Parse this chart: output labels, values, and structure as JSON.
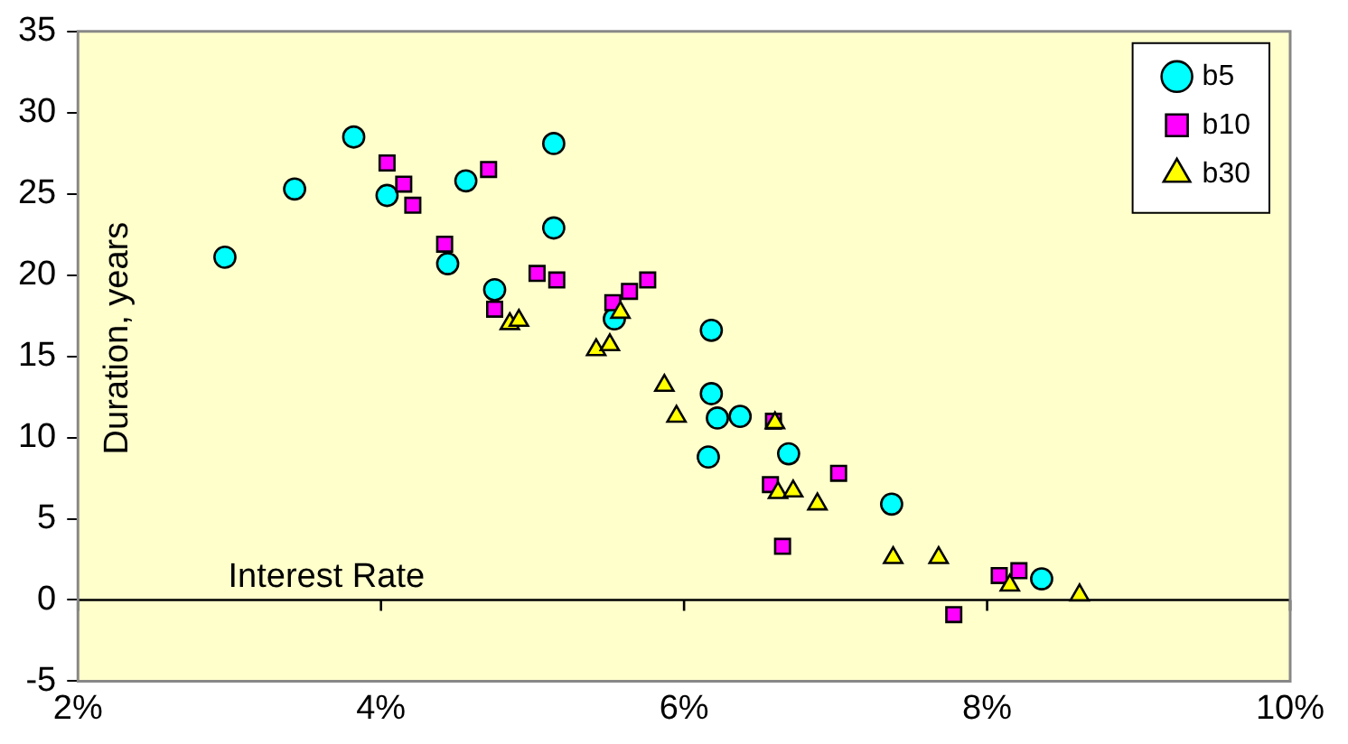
{
  "chart_data": {
    "type": "scatter",
    "xlabel": "Interest Rate",
    "ylabel": "Duration, years",
    "xlim": [
      2,
      10
    ],
    "xticks": [
      {
        "value": 2,
        "label": "2%"
      },
      {
        "value": 4,
        "label": "4%"
      },
      {
        "value": 6,
        "label": "6%"
      },
      {
        "value": 8,
        "label": "8%"
      },
      {
        "value": 10,
        "label": "10%"
      }
    ],
    "ylim": [
      -5,
      35
    ],
    "yticks": [
      -5,
      0,
      5,
      10,
      15,
      20,
      25,
      30,
      35
    ],
    "grid": false,
    "legend": "top right",
    "ref_lines": [
      {
        "axis": "y",
        "value": 0,
        "color": "#000000"
      }
    ],
    "series": [
      {
        "name": "b5",
        "color": "#00ffff",
        "marker": "circle",
        "x": [
          2.97,
          3.43,
          3.82,
          4.04,
          4.44,
          4.56,
          4.75,
          5.14,
          5.14,
          5.54,
          6.18,
          6.18,
          6.22,
          6.37,
          6.16,
          6.69,
          7.37,
          8.36
        ],
        "values": [
          21.1,
          25.3,
          28.5,
          24.9,
          20.7,
          25.8,
          19.1,
          28.1,
          22.9,
          17.3,
          16.6,
          12.7,
          11.2,
          11.3,
          8.8,
          9.0,
          5.9,
          1.3
        ]
      },
      {
        "name": "b10",
        "color": "#ff00ff",
        "marker": "square",
        "x": [
          4.04,
          4.15,
          4.21,
          4.42,
          4.71,
          4.75,
          5.03,
          5.16,
          5.53,
          5.64,
          5.76,
          6.59,
          6.57,
          7.02,
          6.65,
          7.78,
          8.08,
          8.21
        ],
        "values": [
          26.9,
          25.6,
          24.3,
          21.9,
          26.5,
          17.9,
          20.1,
          19.7,
          18.3,
          19.0,
          19.7,
          11.0,
          7.1,
          7.8,
          3.3,
          -0.9,
          1.5,
          1.8
        ]
      },
      {
        "name": "b30",
        "color": "#ffff00",
        "marker": "triangle",
        "x": [
          4.85,
          4.91,
          5.58,
          5.42,
          5.51,
          5.87,
          5.95,
          6.6,
          6.62,
          6.72,
          6.88,
          7.38,
          7.68,
          8.15,
          8.61
        ],
        "values": [
          17.0,
          17.2,
          17.7,
          15.4,
          15.7,
          13.2,
          11.3,
          10.9,
          6.6,
          6.7,
          5.9,
          2.6,
          2.6,
          0.9,
          0.3
        ]
      }
    ]
  }
}
